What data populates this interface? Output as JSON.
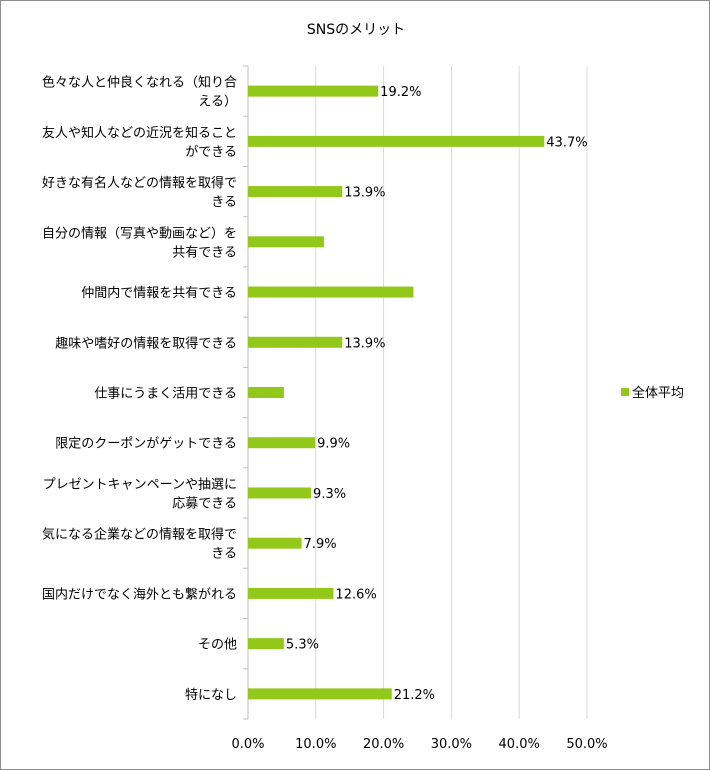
{
  "chart_data": {
    "type": "bar",
    "orientation": "horizontal",
    "title": "SNSのメリット",
    "categories": [
      [
        "色々な人と仲良くなれる（知り合",
        "える）"
      ],
      [
        "友人や知人などの近況を知ること",
        "ができる"
      ],
      [
        "好きな有名人などの情報を取得で",
        "きる"
      ],
      [
        "自分の情報（写真や動画など）を",
        "共有できる"
      ],
      [
        "仲間内で情報を共有できる"
      ],
      [
        "趣味や嗜好の情報を取得できる"
      ],
      [
        "仕事にうまく活用できる"
      ],
      [
        "限定のクーポンがゲットできる"
      ],
      [
        "プレゼントキャンペーンや抽選に",
        "応募できる"
      ],
      [
        "気になる企業などの情報を取得で",
        "きる"
      ],
      [
        "国内だけでなく海外とも繋がれる"
      ],
      [
        "その他"
      ],
      [
        "特になし"
      ]
    ],
    "series": [
      {
        "name": "全体平均",
        "color": "#92c81a",
        "values": [
          19.2,
          43.7,
          13.9,
          11.2,
          24.4,
          13.9,
          5.3,
          9.9,
          9.3,
          7.9,
          12.6,
          5.3,
          21.2
        ],
        "data_labels": [
          "19.2%",
          "43.7%",
          "13.9%",
          "",
          "",
          "13.9%",
          "",
          "9.9%",
          "9.3%",
          "7.9%",
          "12.6%",
          "5.3%",
          "21.2%"
        ]
      }
    ],
    "xlim": [
      0,
      50
    ],
    "xticks": [
      "0.0%",
      "10.0%",
      "20.0%",
      "30.0%",
      "40.0%",
      "50.0%"
    ],
    "grid": true,
    "legend_position": "right"
  }
}
